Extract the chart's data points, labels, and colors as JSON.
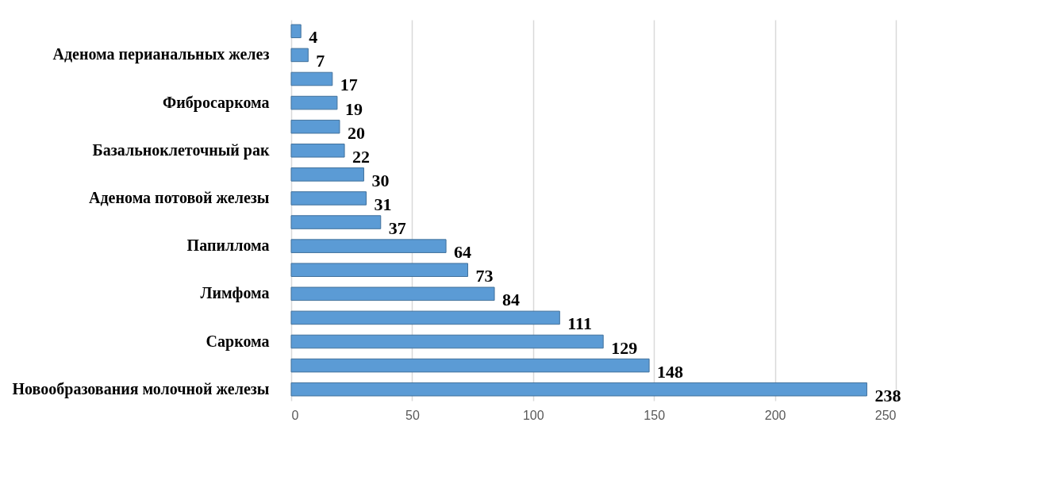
{
  "chart_data": {
    "type": "bar",
    "orientation": "horizontal",
    "categories": [
      null,
      "Аденома перианальных желез",
      null,
      "Фибросаркома",
      null,
      "Базальноклеточный рак",
      null,
      "Аденома потовой железы",
      null,
      "Папиллома",
      null,
      "Лимфома",
      null,
      "Саркома",
      null,
      "Новообразования молочной железы"
    ],
    "values": [
      4,
      7,
      17,
      19,
      20,
      22,
      30,
      31,
      37,
      64,
      73,
      84,
      111,
      129,
      148,
      238
    ],
    "color": "#5b9bd5",
    "xlim": [
      0,
      250
    ],
    "xticks": [
      0,
      50,
      100,
      150,
      200,
      250
    ],
    "grid": "x",
    "data_labels": true
  }
}
